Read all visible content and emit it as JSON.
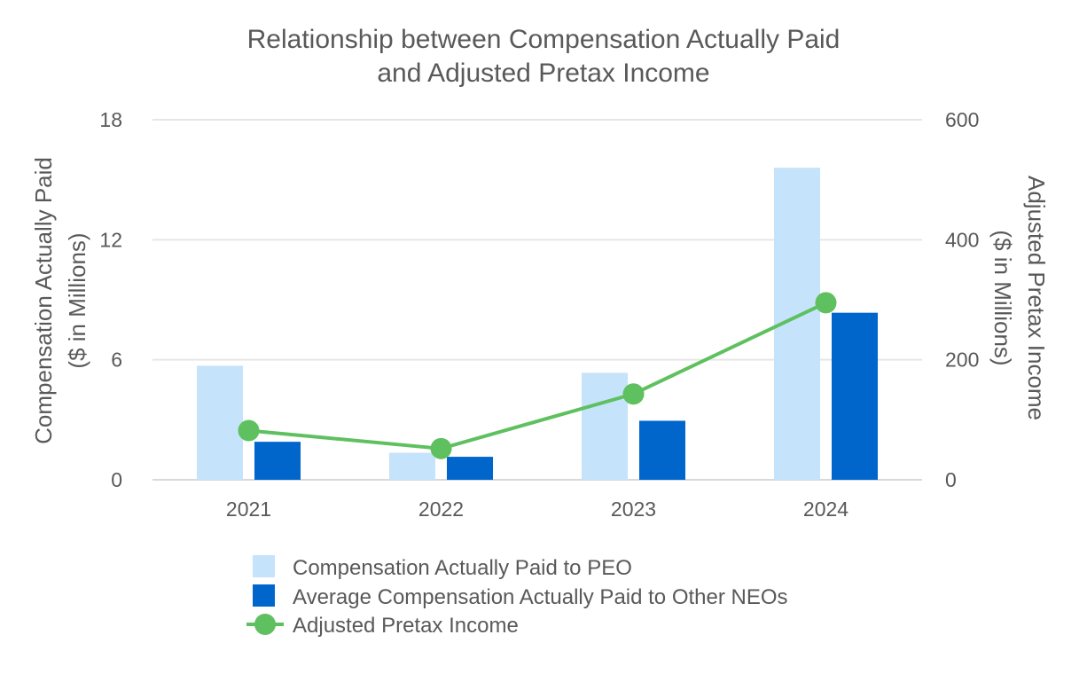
{
  "chart_data": {
    "type": "bar",
    "title": [
      "Relationship between Compensation Actually Paid",
      "and Adjusted Pretax Income"
    ],
    "categories": [
      "2021",
      "2022",
      "2023",
      "2024"
    ],
    "y_left": {
      "label": [
        "Compensation Actually Paid",
        "($ in Millions)"
      ],
      "range": [
        0,
        18
      ],
      "ticks": [
        "0",
        "6",
        "12",
        "18"
      ],
      "tick_values": [
        0,
        6,
        12,
        18
      ]
    },
    "y_right": {
      "label": [
        "Adjusted Pretax Income",
        "($ in Millions)"
      ],
      "range": [
        0,
        600
      ],
      "ticks": [
        "0",
        "200",
        "400",
        "600"
      ],
      "tick_values": [
        0,
        200,
        400,
        600
      ]
    },
    "grid": true,
    "legend_position": "bottom",
    "series": [
      {
        "name": "Compensation Actually Paid to PEO",
        "kind": "bar",
        "axis": "left",
        "color": "#c5e3fb",
        "values": [
          5.7,
          1.35,
          5.35,
          15.6
        ]
      },
      {
        "name": "Average Compensation Actually Paid to Other NEOs",
        "kind": "bar",
        "axis": "left",
        "color": "#0066cc",
        "values": [
          1.9,
          1.15,
          2.95,
          8.35
        ]
      },
      {
        "name": "Adjusted Pretax Income",
        "kind": "line",
        "axis": "right",
        "color": "#5fc05f",
        "values": [
          82,
          52,
          143,
          295
        ]
      }
    ]
  }
}
